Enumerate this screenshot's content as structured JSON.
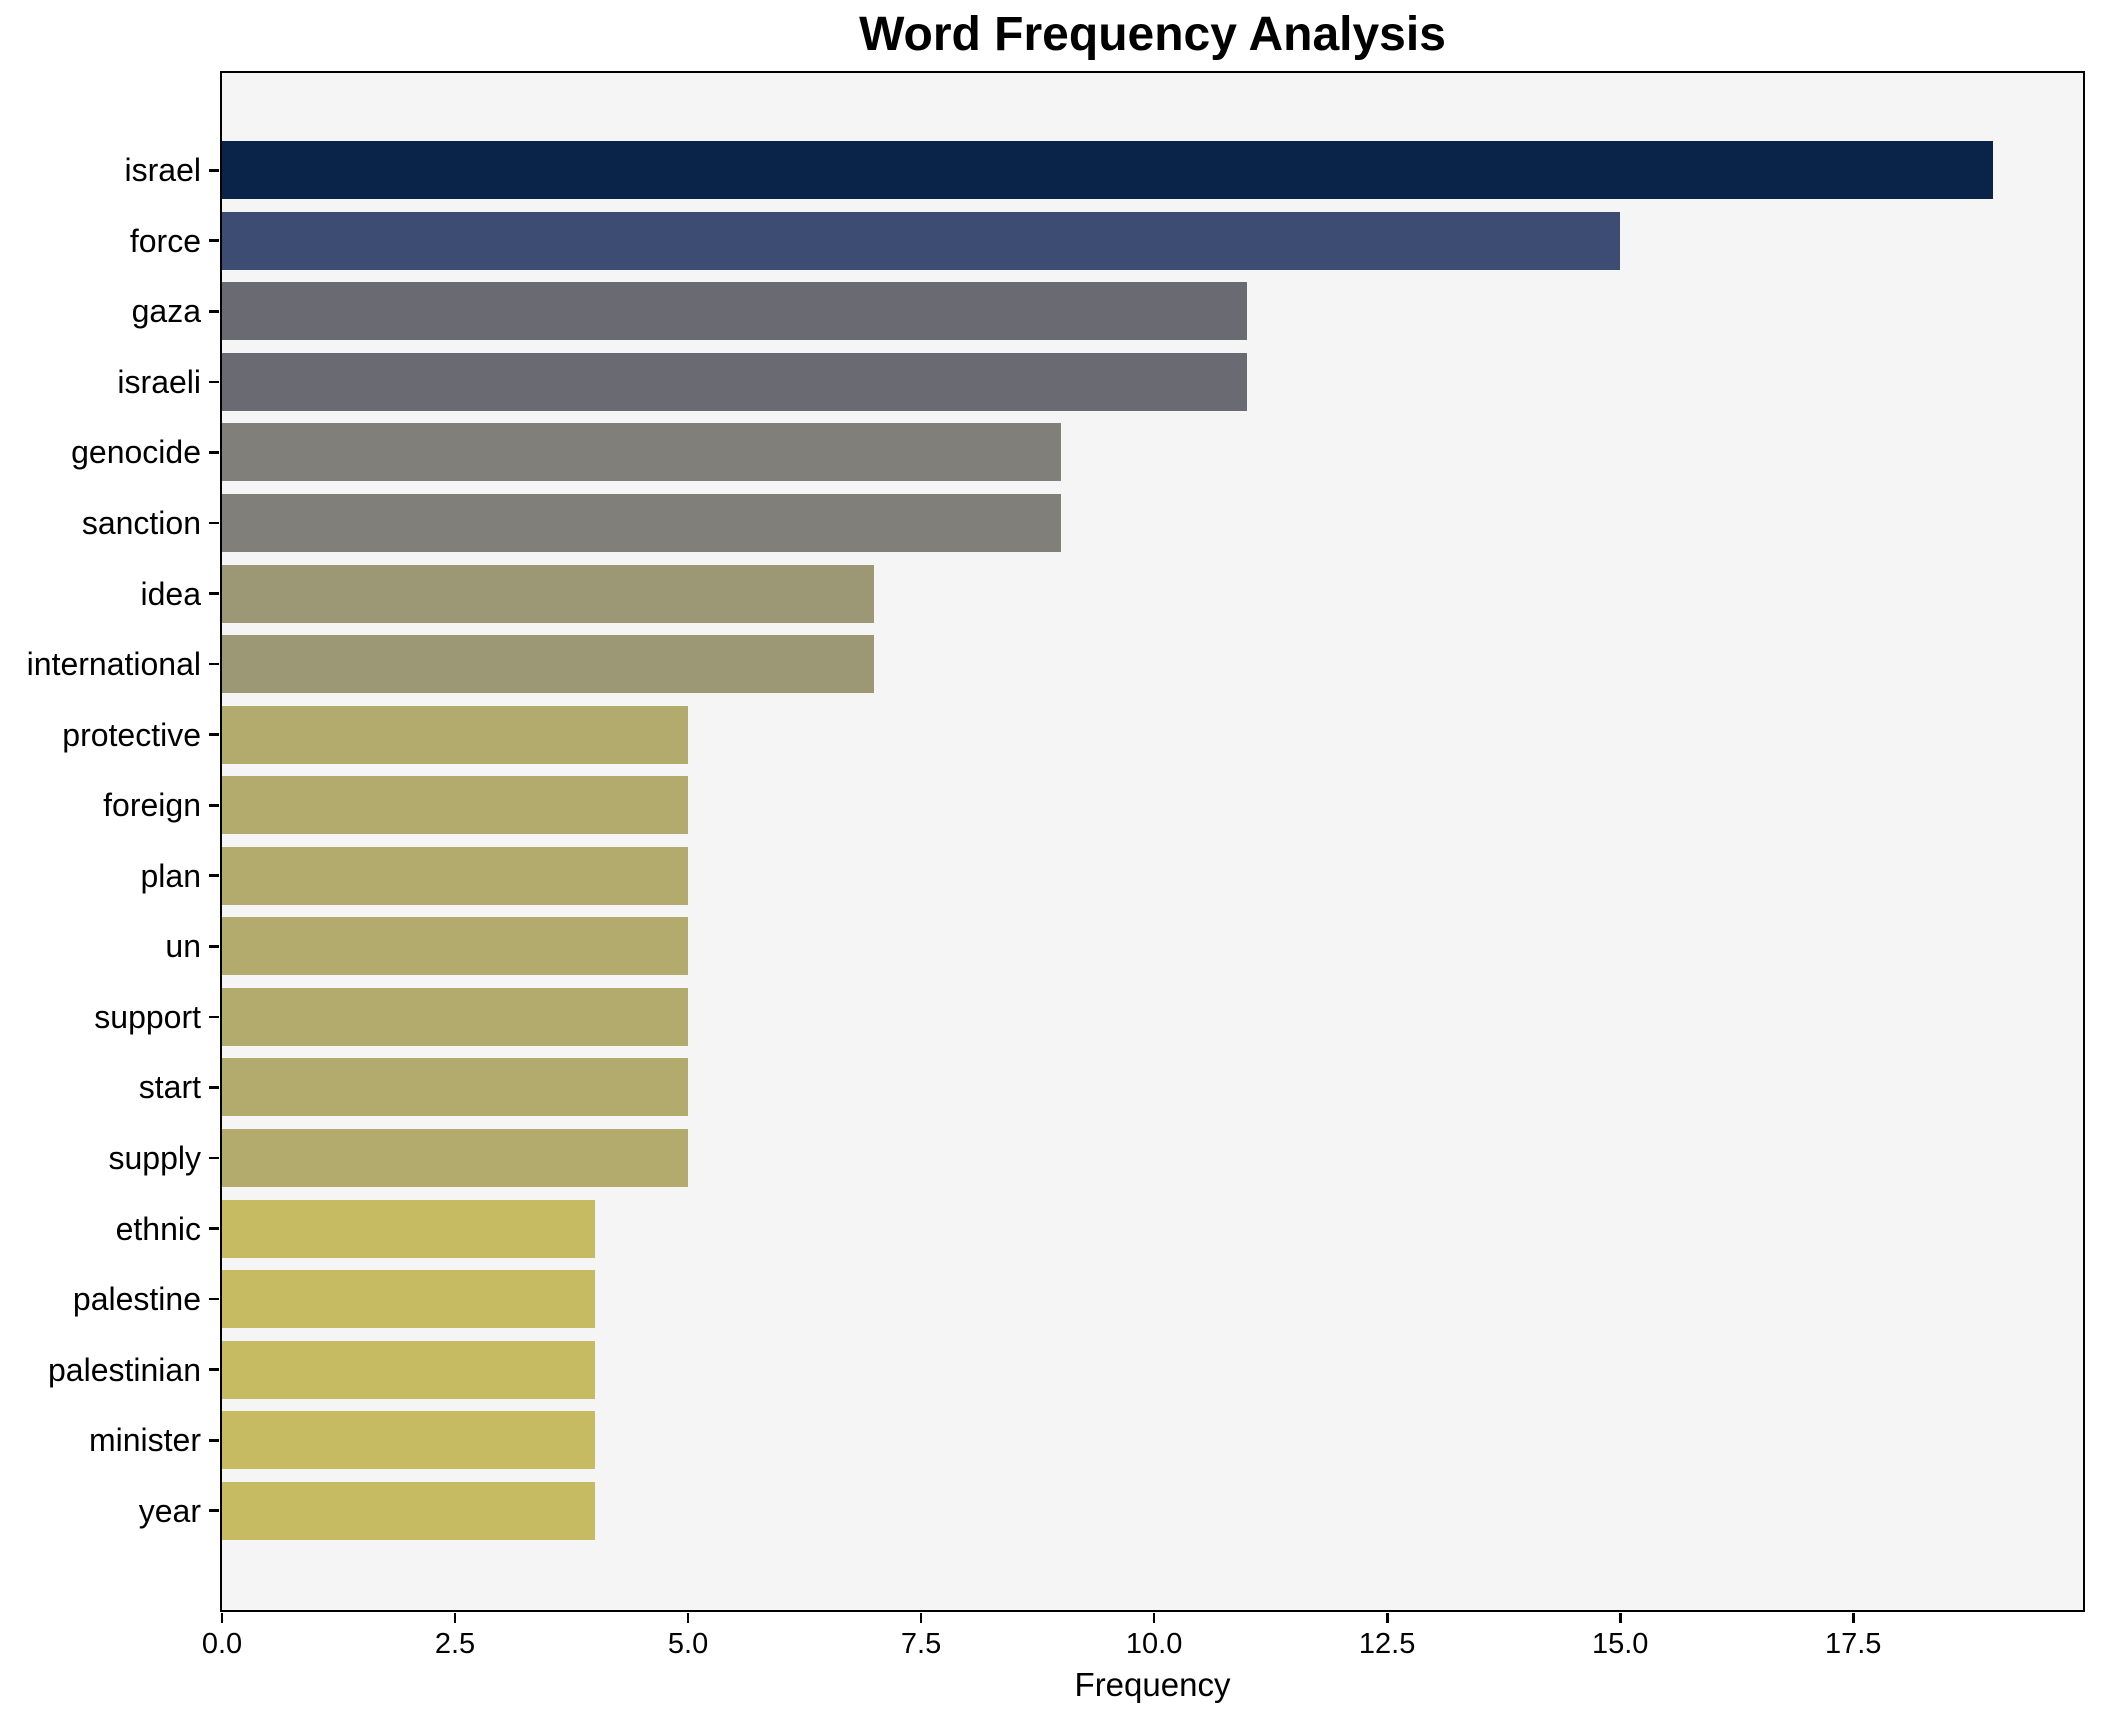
{
  "chart_data": {
    "type": "bar",
    "orientation": "horizontal",
    "title": "Word Frequency Analysis",
    "xlabel": "Frequency",
    "ylabel": "",
    "categories": [
      "israel",
      "force",
      "gaza",
      "israeli",
      "genocide",
      "sanction",
      "idea",
      "international",
      "protective",
      "foreign",
      "plan",
      "un",
      "support",
      "start",
      "supply",
      "ethnic",
      "palestine",
      "palestinian",
      "minister",
      "year"
    ],
    "values": [
      19,
      15,
      11,
      11,
      9,
      9,
      7,
      7,
      5,
      5,
      5,
      5,
      5,
      5,
      5,
      4,
      4,
      4,
      4,
      4
    ],
    "bar_colors": [
      "#0a2349",
      "#3d4c72",
      "#696a72",
      "#696a72",
      "#807f79",
      "#807f79",
      "#9c9775",
      "#9c9775",
      "#b3aa6e",
      "#b3aa6e",
      "#b3aa6e",
      "#b3aa6e",
      "#b3aa6e",
      "#b3aa6e",
      "#b3aa6e",
      "#c6ba62",
      "#c6ba62",
      "#c6ba62",
      "#c6ba62",
      "#c6ba62"
    ],
    "x_ticks": [
      0,
      2.5,
      5,
      7.5,
      10,
      12.5,
      15,
      17.5
    ],
    "x_tick_labels": [
      "0.0",
      "2.5",
      "5.0",
      "7.5",
      "10.0",
      "12.5",
      "15.0",
      "17.5"
    ],
    "xlim": [
      0,
      19.95
    ],
    "grid": false,
    "legend": false,
    "plot_bg": "#f6f5f6",
    "fig_bg": "#ffffff",
    "axis_color": "#000000"
  }
}
